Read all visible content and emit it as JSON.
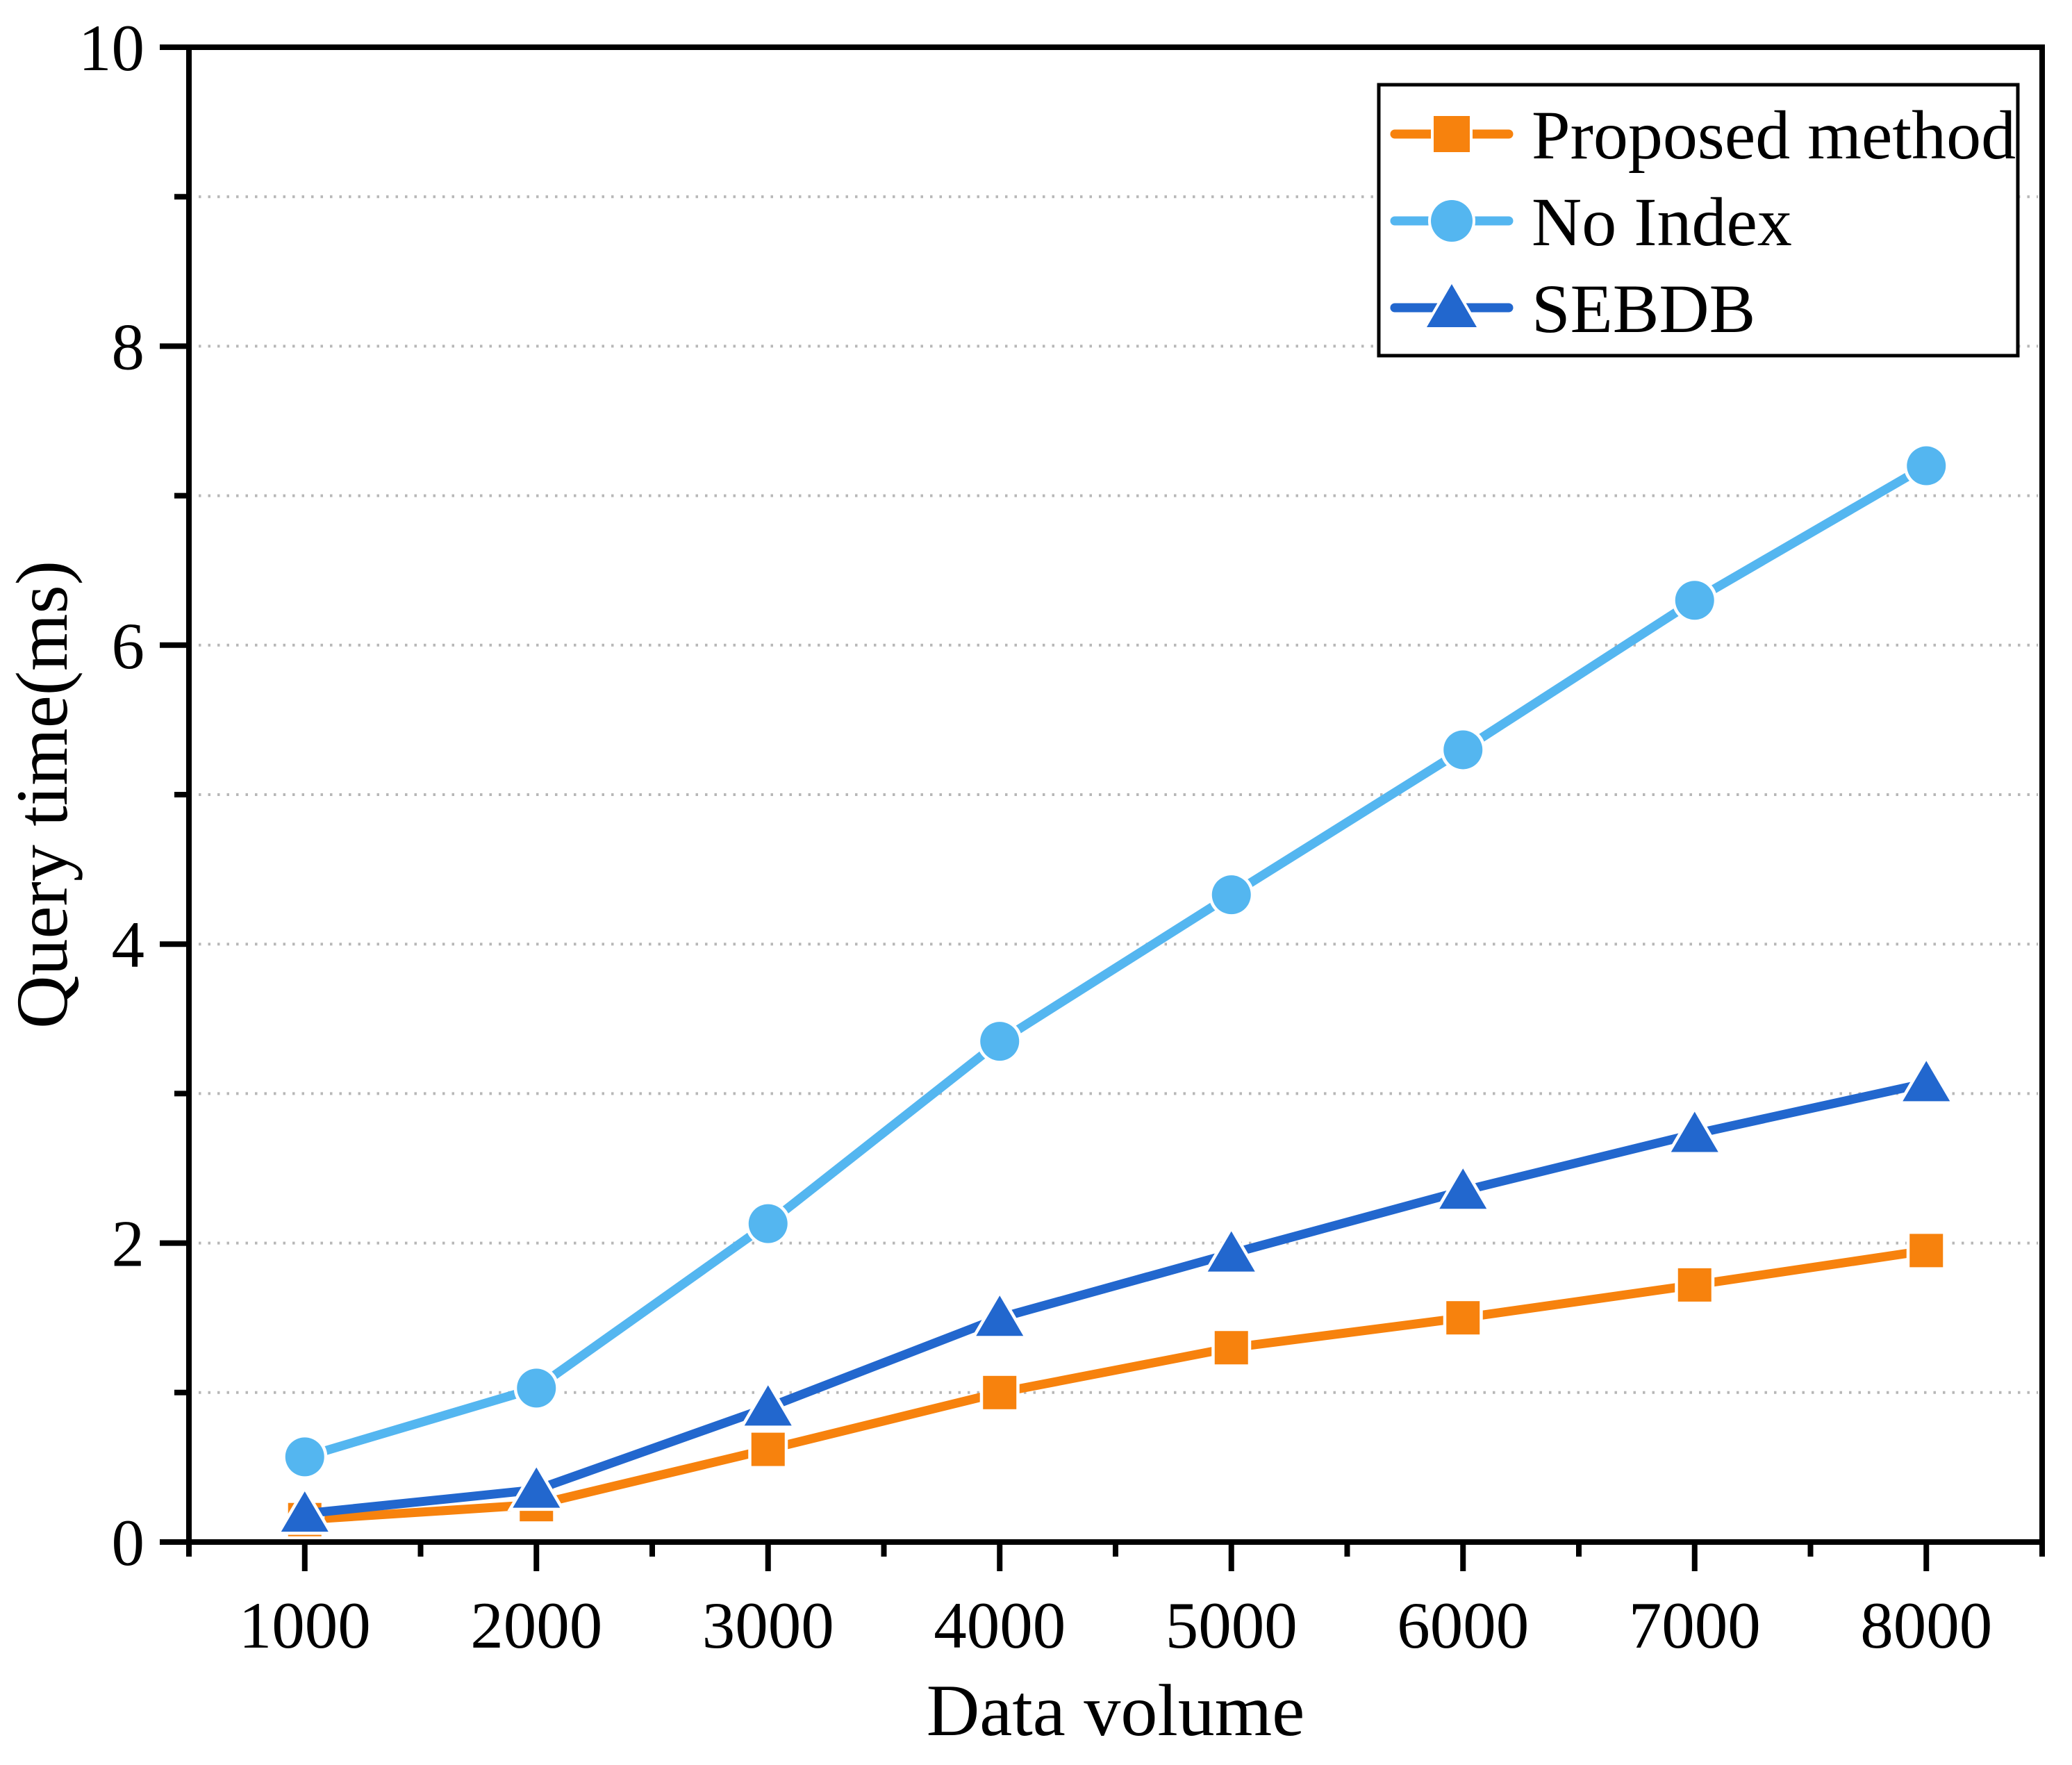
{
  "chart_data": {
    "type": "line",
    "title": "",
    "xlabel": "Data volume",
    "ylabel": "Query time(ms)",
    "x": [
      1000,
      2000,
      3000,
      4000,
      5000,
      6000,
      7000,
      8000
    ],
    "series": [
      {
        "name": "Proposed method",
        "marker": "square",
        "color": "#F7820D",
        "values": [
          0.15,
          0.25,
          0.62,
          1.0,
          1.3,
          1.5,
          1.72,
          1.95
        ]
      },
      {
        "name": "No Index",
        "marker": "circle",
        "color": "#54B6F0",
        "values": [
          0.57,
          1.03,
          2.13,
          3.35,
          4.33,
          5.3,
          6.3,
          7.2
        ]
      },
      {
        "name": "SEBDB",
        "marker": "triangle",
        "color": "#2267CE",
        "values": [
          0.19,
          0.35,
          0.9,
          1.5,
          1.93,
          2.35,
          2.73,
          3.07
        ]
      }
    ],
    "xlim": [
      500,
      8500
    ],
    "ylim": [
      0,
      10
    ],
    "x_major_ticks": [
      1000,
      2000,
      3000,
      4000,
      5000,
      6000,
      7000,
      8000
    ],
    "x_major_tick_labels": [
      "1000",
      "2000",
      "3000",
      "4000",
      "5000",
      "6000",
      "7000",
      "8000"
    ],
    "x_minor_ticks": [
      500,
      1500,
      2500,
      3500,
      4500,
      5500,
      6500,
      7500,
      8500
    ],
    "y_major_ticks": [
      0,
      2,
      4,
      6,
      8,
      10
    ],
    "y_major_tick_labels": [
      "0",
      "2",
      "4",
      "6",
      "8",
      "10"
    ],
    "y_minor_ticks": [
      1,
      3,
      5,
      7,
      9
    ],
    "grid": {
      "y_values": [
        1,
        2,
        3,
        4,
        5,
        6,
        7,
        8,
        9
      ],
      "color": "#b7b7b7",
      "style": "dotted"
    },
    "legend": {
      "position": "top-right",
      "entries": [
        "Proposed method",
        "No Index",
        "SEBDB"
      ]
    },
    "colors": {
      "axis": "#000000",
      "background": "#ffffff",
      "gridline": "#b7b7b7",
      "proposed_method": "#F7820D",
      "no_index": "#54B6F0",
      "sebdb": "#2267CE"
    }
  }
}
